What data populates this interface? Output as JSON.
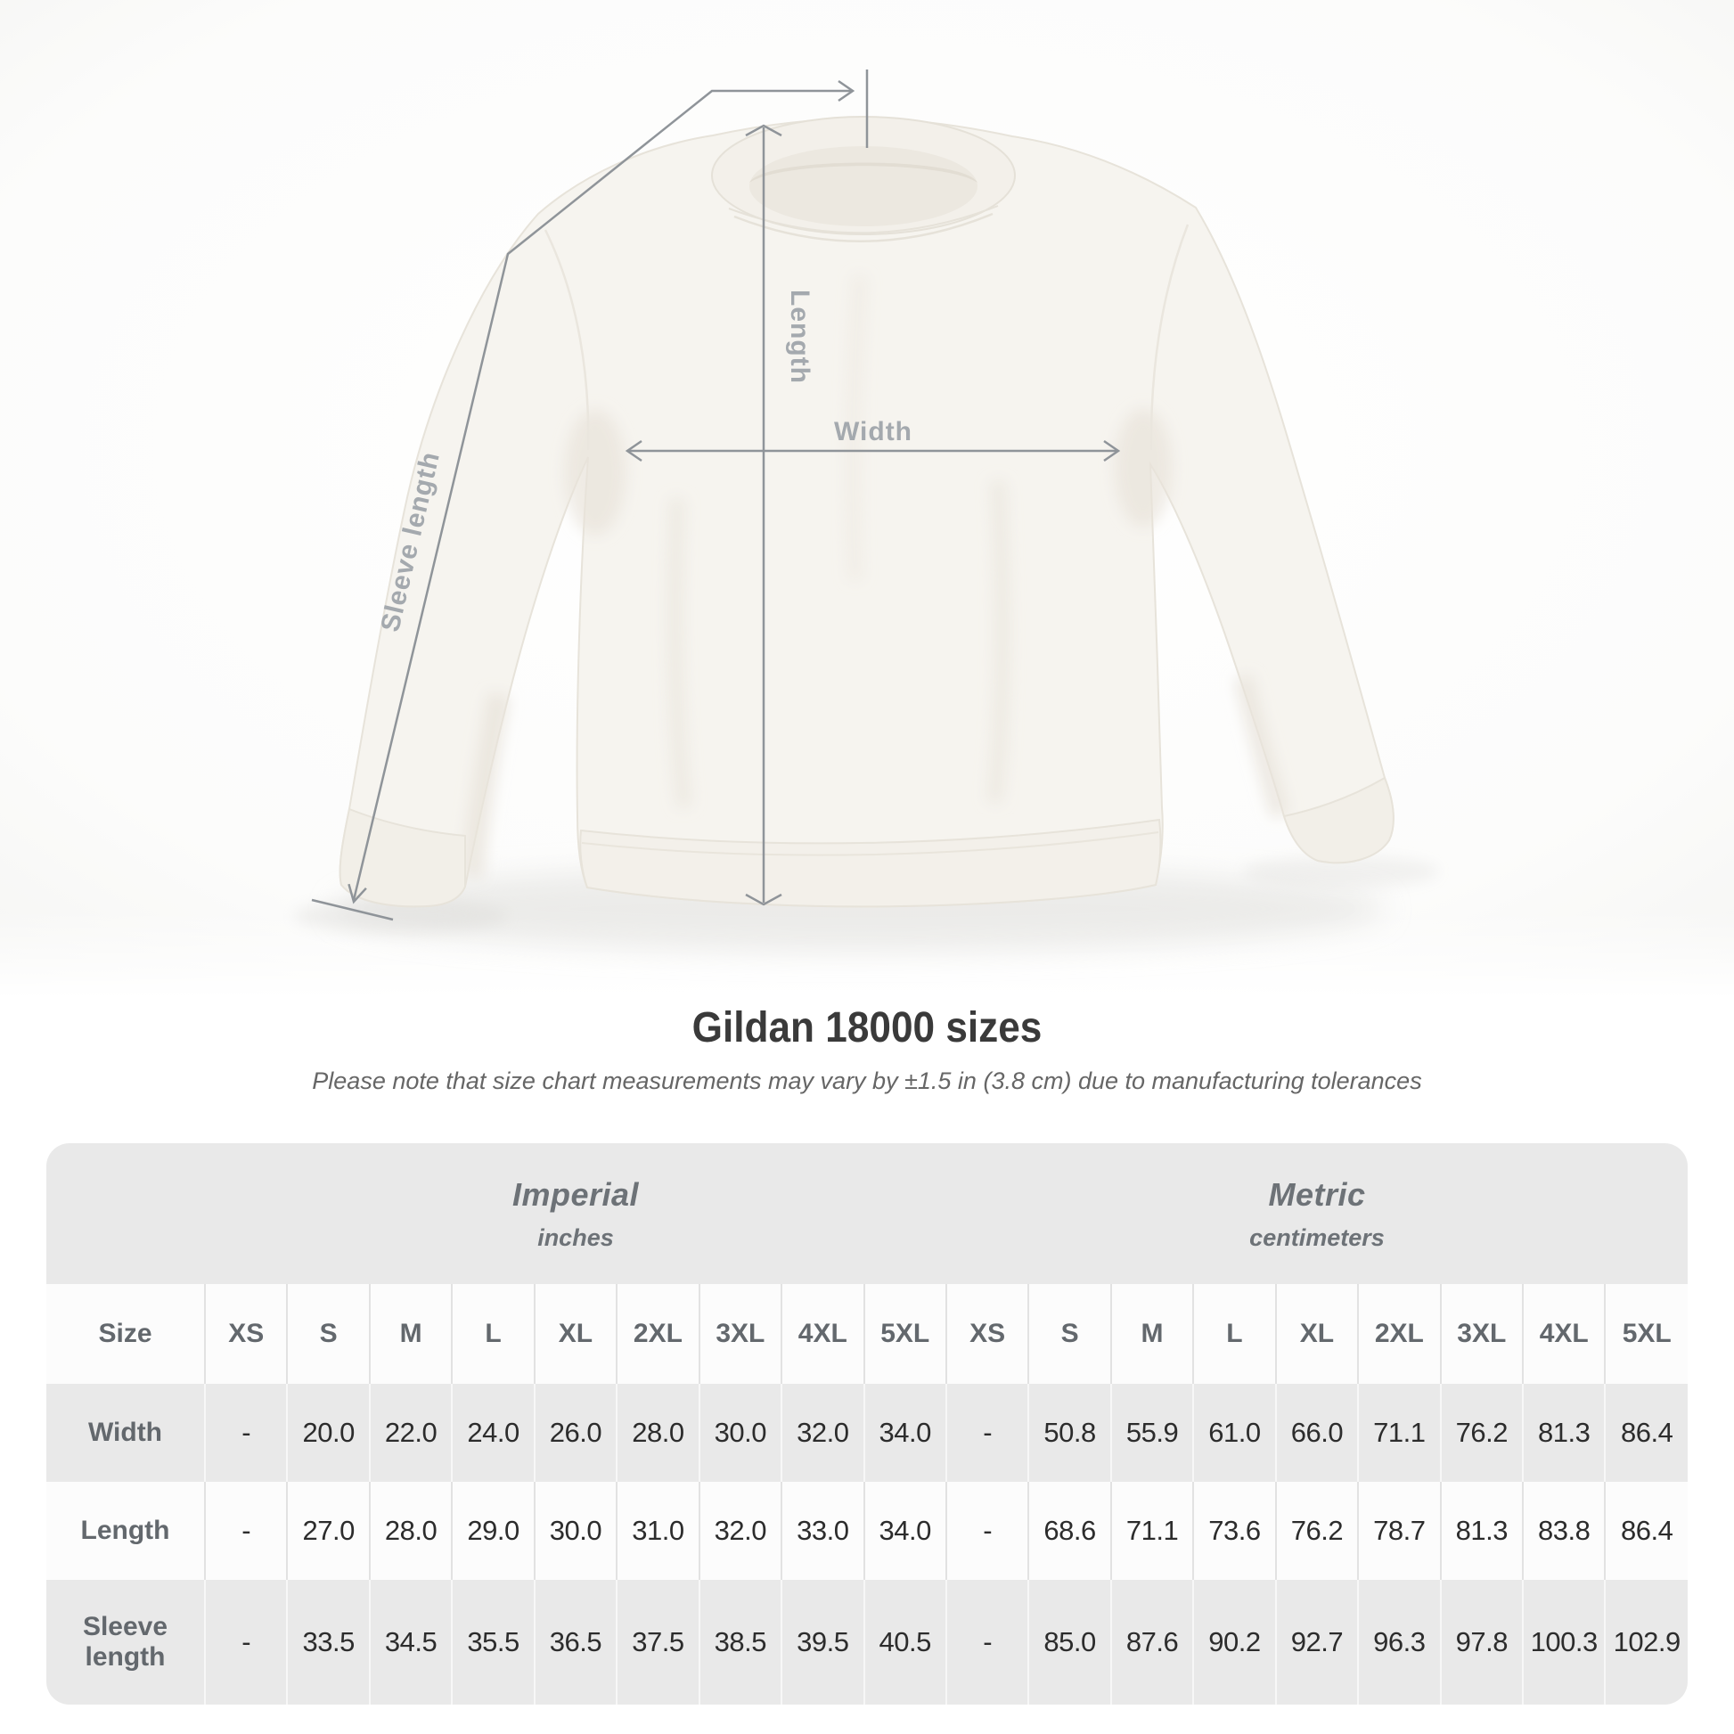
{
  "page": {
    "bg": "#ffffff"
  },
  "diagram": {
    "labels": {
      "length": "Length",
      "width": "Width",
      "sleeve_length": "Sleeve length"
    },
    "line_color": "#8f9499",
    "label_color": "#a4a9ae",
    "garment_color": "#f6f4ef"
  },
  "heading": {
    "title": "Gildan 18000 sizes",
    "note": "Please note that size chart measurements may vary by ±1.5 in (3.8 cm) due to manufacturing tolerances",
    "title_color": "#3a3a3a",
    "note_color": "#666666"
  },
  "size_table": {
    "band_color": "#e9e9e9",
    "size_header": "Size",
    "unit_groups": [
      {
        "name": "Imperial",
        "unit": "inches"
      },
      {
        "name": "Metric",
        "unit": "centimeters"
      }
    ],
    "sizes": [
      "XS",
      "S",
      "M",
      "L",
      "XL",
      "2XL",
      "3XL",
      "4XL",
      "5XL"
    ],
    "rows": [
      {
        "label": "Width",
        "imperial": [
          "-",
          "20.0",
          "22.0",
          "24.0",
          "26.0",
          "28.0",
          "30.0",
          "32.0",
          "34.0"
        ],
        "metric": [
          "-",
          "50.8",
          "55.9",
          "61.0",
          "66.0",
          "71.1",
          "76.2",
          "81.3",
          "86.4"
        ]
      },
      {
        "label": "Length",
        "imperial": [
          "-",
          "27.0",
          "28.0",
          "29.0",
          "30.0",
          "31.0",
          "32.0",
          "33.0",
          "34.0"
        ],
        "metric": [
          "-",
          "68.6",
          "71.1",
          "73.6",
          "76.2",
          "78.7",
          "81.3",
          "83.8",
          "86.4"
        ]
      },
      {
        "label": "Sleeve length",
        "imperial": [
          "-",
          "33.5",
          "34.5",
          "35.5",
          "36.5",
          "37.5",
          "38.5",
          "39.5",
          "40.5"
        ],
        "metric": [
          "-",
          "85.0",
          "87.6",
          "90.2",
          "92.7",
          "96.3",
          "97.8",
          "100.3",
          "102.9"
        ]
      }
    ]
  },
  "chart_data": {
    "type": "table",
    "title": "Gildan 18000 sizes",
    "subtitle": "Please note that size chart measurements may vary by ±1.5 in (3.8 cm) due to manufacturing tolerances",
    "column_groups": [
      "Imperial (inches)",
      "Metric (centimeters)"
    ],
    "columns": [
      "Size",
      "XS",
      "S",
      "M",
      "L",
      "XL",
      "2XL",
      "3XL",
      "4XL",
      "5XL",
      "XS",
      "S",
      "M",
      "L",
      "XL",
      "2XL",
      "3XL",
      "4XL",
      "5XL"
    ],
    "rows": [
      [
        "Width",
        "-",
        20.0,
        22.0,
        24.0,
        26.0,
        28.0,
        30.0,
        32.0,
        34.0,
        "-",
        50.8,
        55.9,
        61.0,
        66.0,
        71.1,
        76.2,
        81.3,
        86.4
      ],
      [
        "Length",
        "-",
        27.0,
        28.0,
        29.0,
        30.0,
        31.0,
        32.0,
        33.0,
        34.0,
        "-",
        68.6,
        71.1,
        73.6,
        76.2,
        78.7,
        81.3,
        83.8,
        86.4
      ],
      [
        "Sleeve length",
        "-",
        33.5,
        34.5,
        35.5,
        36.5,
        37.5,
        38.5,
        39.5,
        40.5,
        "-",
        85.0,
        87.6,
        90.2,
        92.7,
        96.3,
        97.8,
        100.3,
        102.9
      ]
    ]
  }
}
